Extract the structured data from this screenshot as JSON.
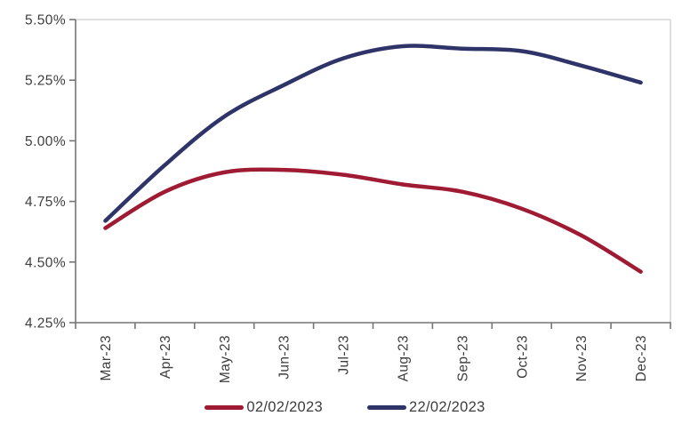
{
  "chart_data": {
    "type": "line",
    "title": "",
    "xlabel": "",
    "ylabel": "",
    "categories": [
      "Mar-23",
      "Apr-23",
      "May-23",
      "Jun-23",
      "Jul-23",
      "Aug-23",
      "Sep-23",
      "Oct-23",
      "Nov-23",
      "Dec-23"
    ],
    "series": [
      {
        "name": "02/02/2023",
        "color": "#9e1b33",
        "values": [
          4.64,
          4.79,
          4.87,
          4.88,
          4.86,
          4.82,
          4.79,
          4.72,
          4.61,
          4.46
        ]
      },
      {
        "name": "22/02/2023",
        "color": "#2f3468",
        "values": [
          4.67,
          4.9,
          5.1,
          5.23,
          5.34,
          5.39,
          5.38,
          5.37,
          5.31,
          5.24
        ]
      }
    ],
    "y_ticks": [
      {
        "value": 5.5,
        "label": "5.50%"
      },
      {
        "value": 5.25,
        "label": "5.25%"
      },
      {
        "value": 5.0,
        "label": "5.00%"
      },
      {
        "value": 4.75,
        "label": "4.75%"
      },
      {
        "value": 4.5,
        "label": "4.50%"
      },
      {
        "value": 4.25,
        "label": "4.25%"
      }
    ],
    "ylim": [
      4.25,
      5.5
    ],
    "grid": "off",
    "plot_border": "top-and-right-only",
    "legend_position": "bottom-center",
    "colors": {
      "axis": "#757575",
      "tick_text": "#3d3d3d",
      "plot_border": "#d6d6d6",
      "background": "#ffffff"
    }
  }
}
